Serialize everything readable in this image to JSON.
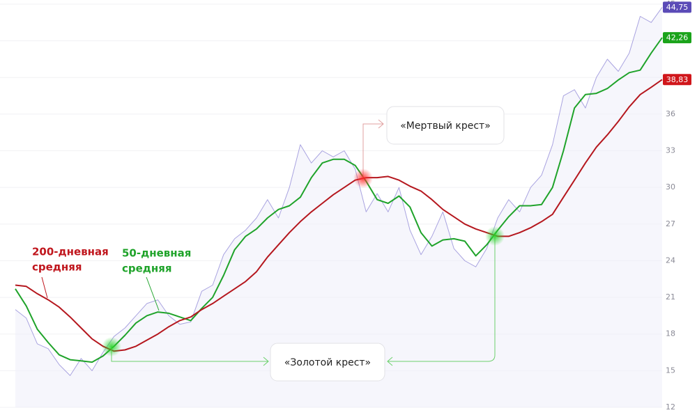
{
  "chart_data": {
    "type": "line",
    "ylim": [
      12,
      45
    ],
    "yticks": [
      12,
      15,
      18,
      21,
      24,
      27,
      30,
      33,
      36,
      39,
      42,
      45
    ],
    "grid": true,
    "series": [
      {
        "color": "#a9a3e0",
        "tag_color": "#5b4bb7",
        "values": [
          20.0,
          19.3,
          17.2,
          16.8,
          15.5,
          14.6,
          16.0,
          15.0,
          16.5,
          17.8,
          18.5,
          19.5,
          20.5,
          20.8,
          19.5,
          18.8,
          19.0,
          21.5,
          22.0,
          24.5,
          25.8,
          26.5,
          27.5,
          29.0,
          27.5,
          30.0,
          33.5,
          32.0,
          33.0,
          32.5,
          33.0,
          31.5,
          28.0,
          29.5,
          28.0,
          30.0,
          26.5,
          24.5,
          26.0,
          28.0,
          25.0,
          24.0,
          23.5,
          25.0,
          27.5,
          29.0,
          28.0,
          30.0,
          31.0,
          33.5,
          37.5,
          38.0,
          36.5,
          39.0,
          40.5,
          39.5,
          41.0,
          44.0,
          43.5,
          44.75
        ],
        "value_labels": {
          "59": "44,75"
        }
      },
      {
        "color": "#1fa32a",
        "tag_color": "#1aa31a",
        "values": [
          21.7,
          20.3,
          18.4,
          17.3,
          16.3,
          15.9,
          15.8,
          15.7,
          16.2,
          17.0,
          17.9,
          18.9,
          19.5,
          19.8,
          19.7,
          19.4,
          19.1,
          20.1,
          21.0,
          22.8,
          24.9,
          26.0,
          26.6,
          27.5,
          28.2,
          28.5,
          29.2,
          30.8,
          32.0,
          32.3,
          32.3,
          31.8,
          30.5,
          29.0,
          28.7,
          29.3,
          28.4,
          26.3,
          25.2,
          25.7,
          25.8,
          25.6,
          24.4,
          25.3,
          26.5,
          27.6,
          28.5,
          28.5,
          28.6,
          30.0,
          33.0,
          36.5,
          37.6,
          37.7,
          38.1,
          38.8,
          39.4,
          39.6,
          41.0,
          42.26
        ],
        "value_labels": {
          "59": "42,26"
        }
      },
      {
        "color": "#b5171e",
        "tag_color": "#d0161b",
        "values": [
          22.0,
          21.9,
          21.3,
          20.8,
          20.2,
          19.4,
          18.5,
          17.6,
          17.0,
          16.6,
          16.7,
          17.0,
          17.5,
          18.0,
          18.6,
          19.1,
          19.4,
          20.0,
          20.5,
          21.1,
          21.7,
          22.3,
          23.1,
          24.3,
          25.3,
          26.3,
          27.2,
          28.0,
          28.7,
          29.4,
          30.0,
          30.6,
          30.8,
          30.8,
          30.9,
          30.6,
          30.1,
          29.7,
          29.0,
          28.2,
          27.6,
          27.0,
          26.6,
          26.3,
          26.0,
          26.0,
          26.3,
          26.7,
          27.2,
          27.8,
          29.2,
          30.6,
          32.0,
          33.3,
          34.3,
          35.4,
          36.6,
          37.6,
          38.2,
          38.83
        ],
        "value_labels": {
          "59": "38,83"
        }
      }
    ],
    "annotations": {
      "ma200": [
        "200-дневная",
        "средняя"
      ],
      "ma50": [
        "50-дневная",
        "средняя"
      ],
      "death_cross": "«Мертвый крест»",
      "golden_cross": "«Золотой крест»"
    }
  }
}
